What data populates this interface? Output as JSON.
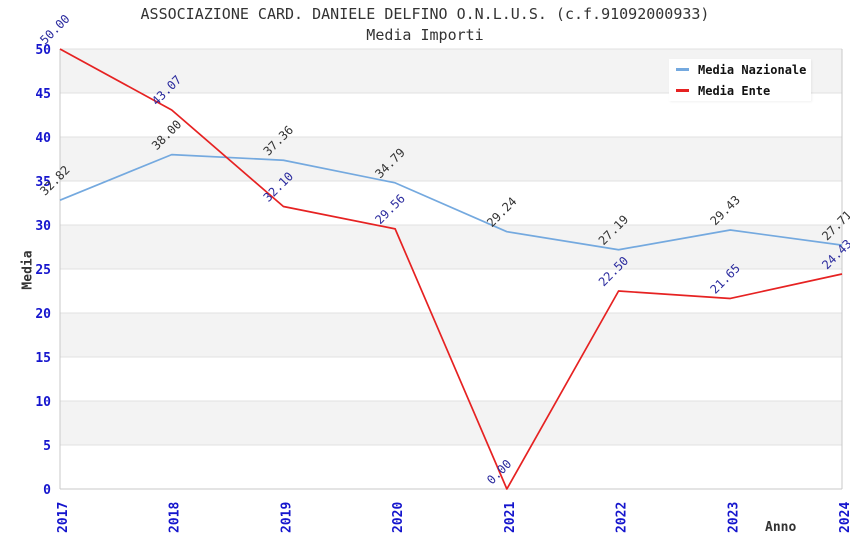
{
  "chart": {
    "title": "ASSOCIAZIONE CARD. DANIELE DELFINO O.N.L.U.S. (c.f.91092000933)",
    "subtitle": "Media Importi"
  },
  "chart_data": {
    "type": "line",
    "title": "ASSOCIAZIONE CARD. DANIELE DELFINO O.N.L.U.S. (c.f.91092000933)",
    "subtitle": "Media Importi",
    "xlabel": "Anno",
    "ylabel": "Media",
    "categories": [
      "2017",
      "2018",
      "2019",
      "2020",
      "2021",
      "2022",
      "2023",
      "2024"
    ],
    "series": [
      {
        "name": "Media Nazionale",
        "color": "#74a9df",
        "label_color": "#333333",
        "values": [
          32.82,
          38.0,
          37.36,
          34.79,
          29.24,
          27.19,
          29.43,
          27.71
        ],
        "point_labels": [
          "32.82",
          "38.00",
          "37.36",
          "34.79",
          "29.24",
          "27.19",
          "29.43",
          "27.71"
        ]
      },
      {
        "name": "Media Ente",
        "color": "#e62222",
        "label_color": "#2b2b9e",
        "values": [
          50.0,
          43.07,
          32.1,
          29.56,
          0.0,
          22.5,
          21.65,
          24.43
        ],
        "point_labels": [
          "50.00",
          "43.07",
          "32.10",
          "29.56",
          "0.00",
          "22.50",
          "21.65",
          "24.43"
        ]
      }
    ],
    "ylim": [
      0,
      50
    ],
    "yticks": [
      0,
      5,
      10,
      15,
      20,
      25,
      30,
      35,
      40,
      45,
      50
    ],
    "grid": true,
    "band_fill": true,
    "legend_position": "top-right",
    "colors": {
      "tick_label": "#1515cd",
      "band": "#f3f3f3",
      "gridline": "#e0e0e0",
      "axis": "#c8c8c8",
      "title_text": "#333333"
    }
  }
}
